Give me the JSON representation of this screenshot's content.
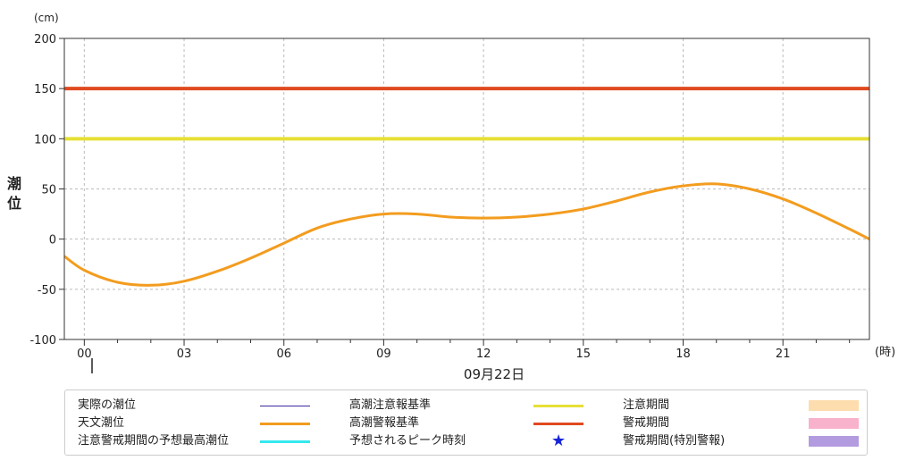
{
  "chart_data": {
    "type": "line",
    "y_unit": "(cm)",
    "ylabel": "潮位",
    "x_unit": "(時)",
    "date_label": "09月22日",
    "ylim": [
      -100,
      200
    ],
    "y_ticks": [
      200,
      150,
      100,
      50,
      0,
      -50,
      -100
    ],
    "x_range_hours": [
      -0.6,
      23.6
    ],
    "x_ticks": [
      {
        "hour": 0,
        "label": "00"
      },
      {
        "hour": 3,
        "label": "03"
      },
      {
        "hour": 6,
        "label": "06"
      },
      {
        "hour": 9,
        "label": "09"
      },
      {
        "hour": 12,
        "label": "12"
      },
      {
        "hour": 15,
        "label": "15"
      },
      {
        "hour": 18,
        "label": "18"
      },
      {
        "hour": 21,
        "label": "21"
      }
    ],
    "grid": true,
    "series": [
      {
        "name": "天文潮位",
        "color": "#f39c1f",
        "x": [
          -0.6,
          0,
          1,
          2,
          3,
          4,
          5,
          6,
          7,
          8,
          9,
          10,
          11,
          12,
          13,
          14,
          15,
          16,
          17,
          18,
          19,
          20,
          21,
          22,
          23,
          23.6
        ],
        "y": [
          -17,
          -31,
          -43,
          -46,
          -42,
          -32,
          -19,
          -4,
          11,
          20,
          25,
          25,
          22,
          21,
          22,
          25,
          30,
          38,
          47,
          53,
          55,
          50,
          40,
          26,
          10,
          0
        ]
      },
      {
        "name": "高潮注意報基準",
        "color": "#e6e035",
        "x": [
          -0.6,
          23.6
        ],
        "y": [
          100,
          100
        ]
      },
      {
        "name": "高潮警報基準",
        "color": "#e04a1f",
        "x": [
          -0.6,
          23.6
        ],
        "y": [
          150,
          150
        ]
      }
    ]
  },
  "legend": [
    {
      "label": "実際の潮位",
      "kind": "line",
      "color": "#3a2a9e",
      "thick": 1
    },
    {
      "label": "天文潮位",
      "kind": "line",
      "color": "#f39c1f",
      "thick": 3
    },
    {
      "label": "注意警戒期間の予想最高潮位",
      "kind": "line",
      "color": "#35e8ee",
      "thick": 3
    },
    {
      "label": "高潮注意報基準",
      "kind": "line",
      "color": "#e6e035",
      "thick": 3
    },
    {
      "label": "高潮警報基準",
      "kind": "line",
      "color": "#e04a1f",
      "thick": 3
    },
    {
      "label": "予想されるピーク時刻",
      "kind": "star",
      "color": "#1624d8",
      "icon": "star-icon"
    },
    {
      "label": "注意期間",
      "kind": "box",
      "color": "#fddcae"
    },
    {
      "label": "警戒期間",
      "kind": "box",
      "color": "#f8b2cb"
    },
    {
      "label": "警戒期間(特別警報)",
      "kind": "box",
      "color": "#b39be0"
    }
  ]
}
